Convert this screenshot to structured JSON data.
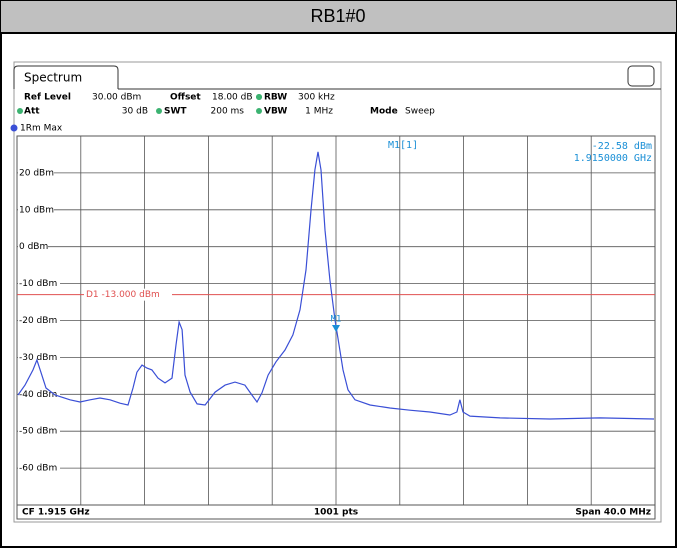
{
  "header": {
    "title": "RB1#0",
    "tab": "Spectrum",
    "settings": [
      {
        "name": "Ref Level",
        "value": "30.00 dBm"
      },
      {
        "name": "Offset",
        "value": "18.00 dB"
      },
      {
        "name": "RBW",
        "value": "300 kHz"
      },
      {
        "name": "Att",
        "value": "30 dB"
      },
      {
        "name": "SWT",
        "value": "200 ms"
      },
      {
        "name": "VBW",
        "value": "1 MHz"
      },
      {
        "name": "Mode",
        "value": "Sweep"
      }
    ]
  },
  "footer": {
    "left": "CF 1.915 GHz",
    "center": "1001 pts",
    "right": "Span 40.0 MHz"
  },
  "chart_data": {
    "type": "line",
    "xlim": [
      1895,
      1935
    ],
    "xticks": [
      1899,
      1903,
      1907,
      1911,
      1915,
      1919,
      1923,
      1927,
      1931
    ],
    "ylim": [
      -70,
      30
    ],
    "yticks": [
      {
        "value": 20,
        "label": "20 dBm"
      },
      {
        "value": 10,
        "label": "10 dBm"
      },
      {
        "value": 0,
        "label": "0 dBm"
      },
      {
        "value": -10,
        "label": "-10 dBm"
      },
      {
        "value": -20,
        "label": "-20 dBm"
      },
      {
        "value": -30,
        "label": "-30 dBm"
      },
      {
        "value": -40,
        "label": "-40 dBm"
      },
      {
        "value": -50,
        "label": "-50 dBm"
      },
      {
        "value": -60,
        "label": "-60 dBm"
      }
    ],
    "grid": true,
    "series": [
      {
        "name": "1Rm Max",
        "color": "#3a4fd6",
        "x": [
          1895.06,
          1895.5,
          1896.0,
          1896.25,
          1896.5,
          1896.82,
          1897.38,
          1898.32,
          1898.95,
          1899.58,
          1900.2,
          1900.83,
          1901.46,
          1901.96,
          1902.27,
          1902.52,
          1902.84,
          1903.15,
          1903.46,
          1903.84,
          1904.28,
          1904.72,
          1904.97,
          1905.16,
          1905.35,
          1905.53,
          1905.85,
          1906.29,
          1906.79,
          1907.42,
          1908.05,
          1908.67,
          1909.29,
          1909.73,
          1910.05,
          1910.36,
          1910.74,
          1911.24,
          1911.8,
          1912.3,
          1912.74,
          1913.12,
          1913.43,
          1913.68,
          1913.87,
          1914.06,
          1914.31,
          1914.62,
          1914.94,
          1915.12,
          1915.44,
          1915.75,
          1916.19,
          1917.13,
          1918.38,
          1919.63,
          1920.89,
          1922.14,
          1922.58,
          1922.77,
          1922.96,
          1923.4,
          1925.28,
          1928.42,
          1931.55,
          1934.94
        ],
        "values": [
          -40.2,
          -37.5,
          -33.4,
          -30.7,
          -34.0,
          -38.3,
          -40.2,
          -41.5,
          -42.1,
          -41.5,
          -41.0,
          -41.5,
          -42.4,
          -42.9,
          -38.3,
          -34.0,
          -32.1,
          -32.9,
          -33.4,
          -35.6,
          -36.9,
          -35.6,
          -26.6,
          -20.4,
          -22.5,
          -34.8,
          -39.4,
          -42.6,
          -42.9,
          -39.4,
          -37.5,
          -36.7,
          -37.5,
          -40.2,
          -42.1,
          -39.6,
          -34.8,
          -31.2,
          -28.0,
          -23.9,
          -17.1,
          -6.3,
          9.9,
          20.8,
          25.7,
          20.8,
          4.5,
          -9.0,
          -19.9,
          -24.7,
          -33.4,
          -38.8,
          -41.5,
          -42.9,
          -43.7,
          -44.3,
          -44.8,
          -45.6,
          -44.8,
          -41.5,
          -44.8,
          -45.9,
          -46.4,
          -46.7,
          -46.4,
          -46.7
        ]
      }
    ],
    "display_line": {
      "label": "D1 -13.000 dBm",
      "value": -13,
      "color": "#e05050"
    },
    "marker": {
      "label": "M1",
      "readout": "M1[1]",
      "x": 1915,
      "y": -22.58,
      "value_label": "-22.58 dBm",
      "x_label": "1.9150000 GHz",
      "color": "#1a8fd6"
    }
  }
}
